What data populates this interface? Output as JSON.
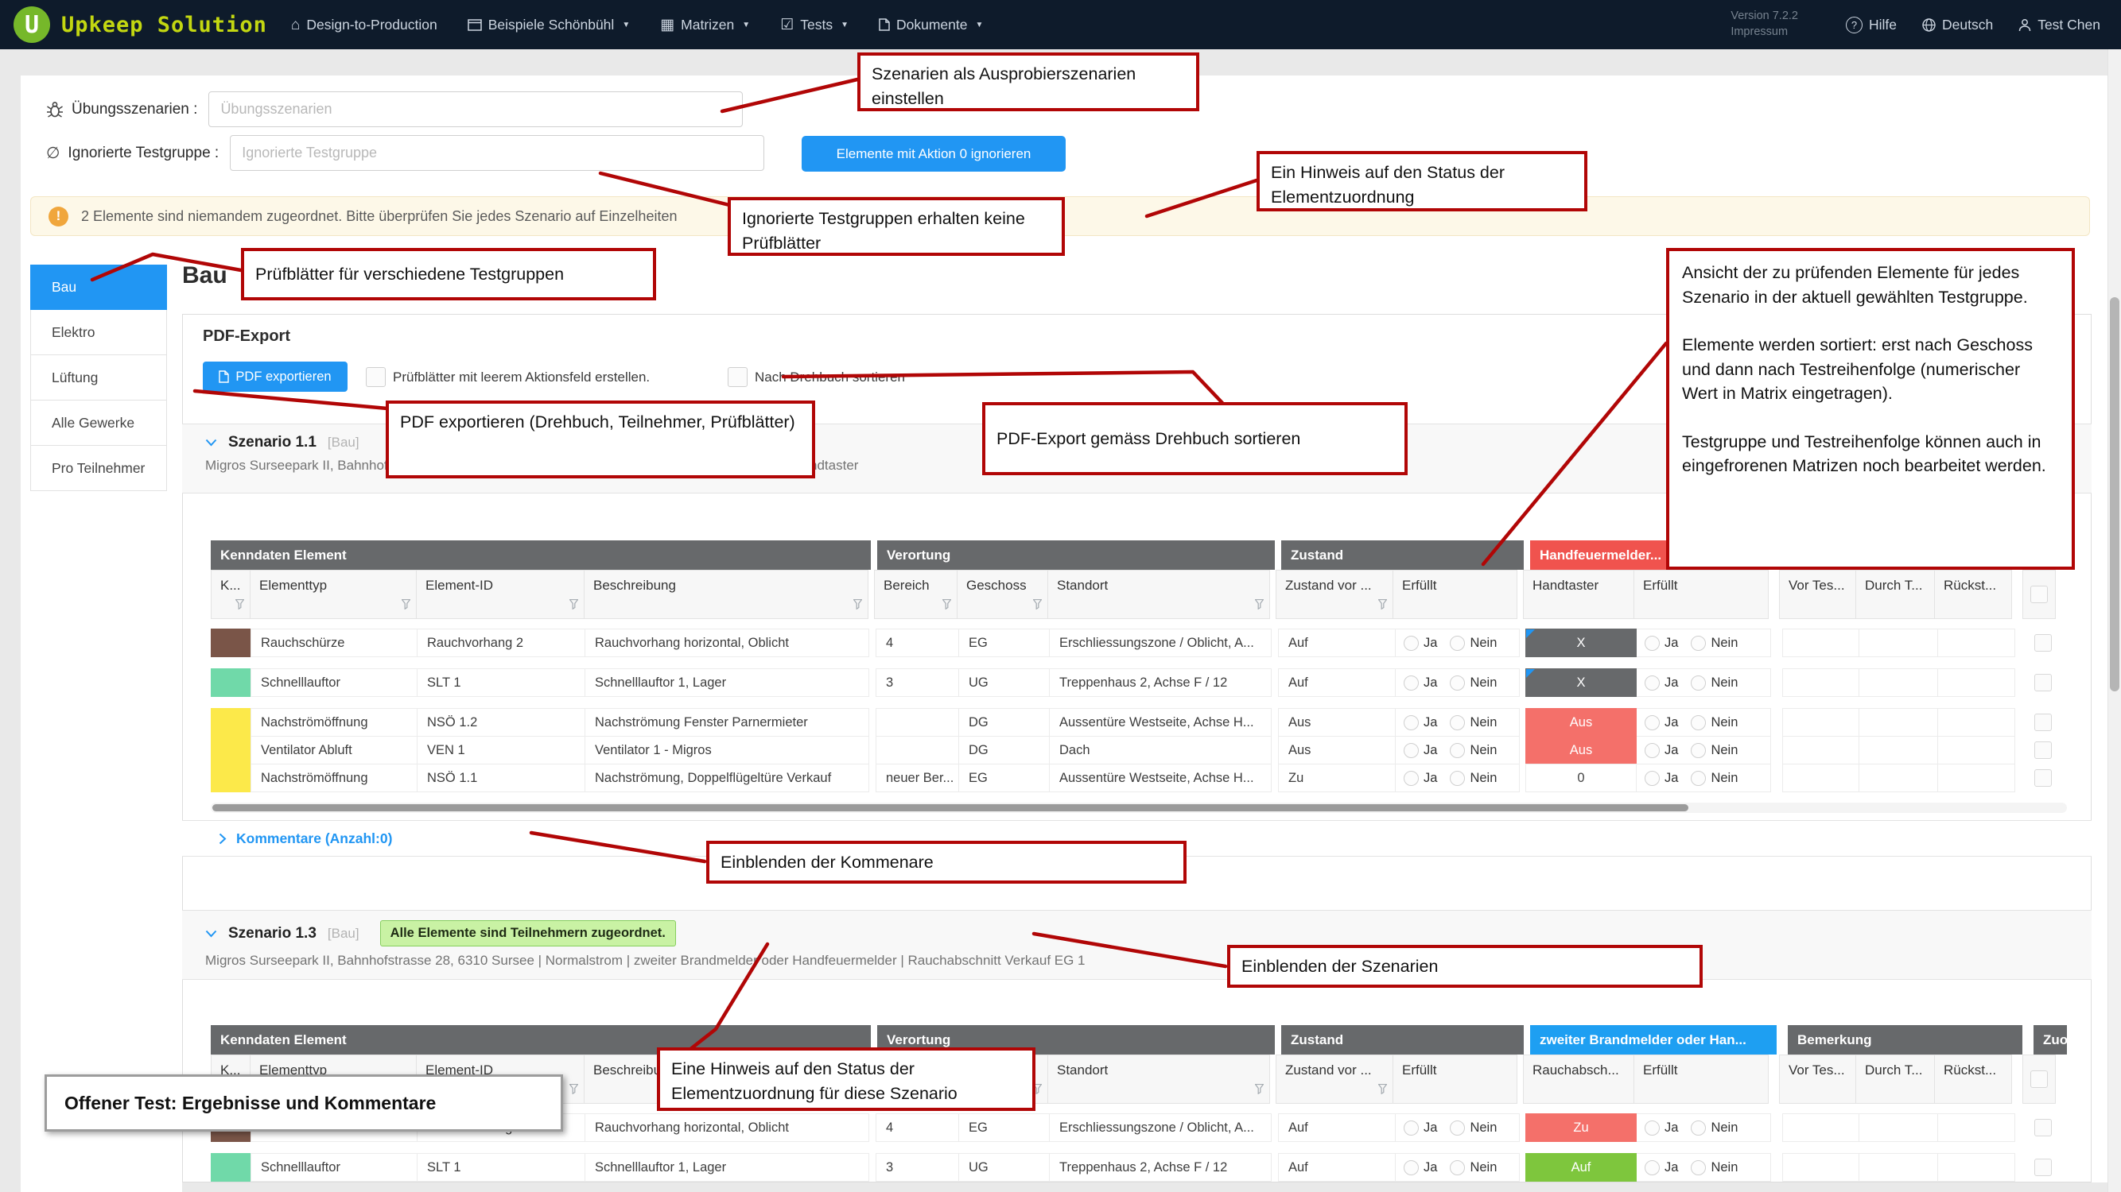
{
  "navbar": {
    "logo_letter": "U",
    "brand": "Upkeep Solution",
    "items": [
      {
        "icon": "home-icon",
        "label": "Design-to-Production",
        "caret": false
      },
      {
        "icon": "window-icon",
        "label": "Beispiele Schönbühl",
        "caret": true
      },
      {
        "icon": "grid-icon",
        "label": "Matrizen",
        "caret": true
      },
      {
        "icon": "calendar-check-icon",
        "label": "Tests",
        "caret": true
      },
      {
        "icon": "document-icon",
        "label": "Dokumente",
        "caret": true
      }
    ],
    "version_line1": "Version 7.2.2",
    "version_line2": "Impressum",
    "right_items": [
      {
        "icon": "question-icon",
        "label": "Hilfe"
      },
      {
        "icon": "globe-icon",
        "label": "Deutsch"
      },
      {
        "icon": "person-icon",
        "label": "Test Chen"
      }
    ]
  },
  "filters": {
    "practice_label": "Übungsszenarien :",
    "practice_placeholder": "Übungsszenarien",
    "ignored_label": "Ignorierte Testgruppe :",
    "ignored_placeholder": "Ignorierte Testgruppe",
    "ignore_button": "Elemente mit Aktion 0 ignorieren"
  },
  "warning_text": "2 Elemente sind niemandem zugeordnet. Bitte überprüfen Sie jedes Szenario auf Einzelheiten",
  "sidebar": {
    "items": [
      "Bau",
      "Elektro",
      "Lüftung",
      "Alle Gewerke",
      "Pro Teilnehmer"
    ],
    "active_index": 0
  },
  "page_title": "Bau",
  "pdf_export": {
    "heading": "PDF-Export",
    "button": "PDF exportieren",
    "checkbox1": "Prüfblätter mit leerem Aktionsfeld erstellen.",
    "checkbox2": "Nach Drehbuch sortieren"
  },
  "labels": {
    "yes": "Ja",
    "no": "Nein"
  },
  "scenario1": {
    "title": "Szenario 1.1",
    "tag": "[Bau]",
    "subtitle": "Migros Surseepark II, Bahnhofstrasse 28, 6310 Sursee | Normalstrom | zweiter Brandmelder oder Handtaster",
    "comments_link": "Kommentare (Anzahl:0)"
  },
  "scenario2": {
    "title": "Szenario 1.3",
    "tag": "[Bau]",
    "badge": "Alle Elemente sind Teilnehmern zugeordnet.",
    "subtitle": "Migros Surseepark II, Bahnhofstrasse 28, 6310 Sursee | Normalstrom | zweiter Brandmelder oder Handfeuermelder | Rauchabschnitt Verkauf EG 1"
  },
  "tables": [
    {
      "dom": "table1",
      "groups": [
        {
          "label": "Kenndaten Element",
          "style": "dark",
          "cols": [
            {
              "label": "K...",
              "filter": true
            },
            {
              "label": "Elementtyp",
              "filter": true
            },
            {
              "label": "Element-ID",
              "filter": true
            },
            {
              "label": "Beschreibung",
              "filter": true
            }
          ]
        },
        {
          "label": "Verortung",
          "style": "dark",
          "cols": [
            {
              "label": "Bereich",
              "filter": true
            },
            {
              "label": "Geschoss",
              "filter": true
            },
            {
              "label": "Standort",
              "filter": true
            }
          ]
        },
        {
          "label": "Zustand",
          "style": "dark",
          "cols": [
            {
              "label": "Zustand vor ...",
              "filter": true
            },
            {
              "label": "Erfüllt",
              "filter": false
            }
          ]
        },
        {
          "label": "Handfeuermelder...",
          "style": "red",
          "cols": [
            {
              "label": "Handtaster",
              "filter": false
            },
            {
              "label": "Erfüllt",
              "filter": false
            }
          ]
        },
        {
          "label": "Bemerkung",
          "style": "dark",
          "cols": [
            {
              "label": "Vor Tes...",
              "filter": false
            },
            {
              "label": "Durch T...",
              "filter": false
            },
            {
              "label": "Rückst...",
              "filter": false
            }
          ]
        },
        {
          "label": "Zuo...",
          "style": "dark",
          "cols": [
            {
              "label": "",
              "checkbox": true
            }
          ]
        }
      ],
      "blocks": [
        {
          "swatch": "#7a5548",
          "rows": [
            {
              "typ": "Rauchschürze",
              "id": "Rauchvorhang 2",
              "beschr": "Rauchvorhang horizontal, Oblicht",
              "bereich": "4",
              "geschoss": "EG",
              "standort": "Erschliessungszone / Oblicht, A...",
              "zvor": "Auf",
              "status": {
                "text": "X",
                "type": "dark",
                "marker": true
              }
            }
          ]
        },
        {
          "swatch": "#70d9a9",
          "rows": [
            {
              "typ": "Schnelllauftor",
              "id": "SLT 1",
              "beschr": "Schnelllauftor 1, Lager",
              "bereich": "3",
              "geschoss": "UG",
              "standort": "Treppenhaus 2, Achse F / 12",
              "zvor": "Auf",
              "status": {
                "text": "X",
                "type": "dark",
                "marker": true
              }
            }
          ]
        },
        {
          "swatch": "#fce94a",
          "rows": [
            {
              "typ": "Nachströmöffnung",
              "id": "NSÖ 1.2",
              "beschr": "Nachströmung Fenster Parnermieter",
              "bereich": "",
              "geschoss": "DG",
              "standort": "Aussentüre Westseite, Achse H...",
              "zvor": "Aus",
              "status": {
                "text": "Aus",
                "type": "red",
                "marker": false
              }
            },
            {
              "typ": "Ventilator Abluft",
              "id": "VEN 1",
              "beschr": "Ventilator 1 - Migros",
              "bereich": "",
              "geschoss": "DG",
              "standort": "Dach",
              "zvor": "Aus",
              "status": {
                "text": "Aus",
                "type": "red",
                "marker": false
              }
            },
            {
              "typ": "Nachströmöffnung",
              "id": "NSÖ 1.1",
              "beschr": "Nachströmung, Doppelflügeltüre Verkauf",
              "bereich": "neuer Ber...",
              "geschoss": "EG",
              "standort": "Aussentüre Westseite, Achse H...",
              "zvor": "Zu",
              "status": {
                "text": "0",
                "type": "plain",
                "marker": false
              }
            }
          ]
        }
      ]
    },
    {
      "dom": "table2",
      "groups": [
        {
          "label": "Kenndaten Element",
          "style": "dark",
          "cols": [
            {
              "label": "K...",
              "filter": true
            },
            {
              "label": "Elementtyp",
              "filter": true
            },
            {
              "label": "Element-ID",
              "filter": true
            },
            {
              "label": "Beschreibu...",
              "filter": true
            }
          ]
        },
        {
          "label": "Verortung",
          "style": "dark",
          "cols": [
            {
              "label": "Bereich",
              "filter": true
            },
            {
              "label": "Geschoss",
              "filter": true
            },
            {
              "label": "Standort",
              "filter": true
            }
          ]
        },
        {
          "label": "Zustand",
          "style": "dark",
          "cols": [
            {
              "label": "Zustand vor ...",
              "filter": true
            },
            {
              "label": "Erfüllt",
              "filter": false
            }
          ]
        },
        {
          "label": "zweiter Brandmelder oder Han...",
          "style": "blue",
          "cols": [
            {
              "label": "Rauchabsch...",
              "filter": false
            },
            {
              "label": "Erfüllt",
              "filter": false
            }
          ]
        },
        {
          "label": "Bemerkung",
          "style": "dark",
          "cols": [
            {
              "label": "Vor Tes...",
              "filter": false
            },
            {
              "label": "Durch T...",
              "filter": false
            },
            {
              "label": "Rückst...",
              "filter": false
            }
          ]
        },
        {
          "label": "Zuo...",
          "style": "dark",
          "cols": [
            {
              "label": "",
              "checkbox": true
            }
          ]
        }
      ],
      "blocks": [
        {
          "swatch": "#7a5548",
          "rows": [
            {
              "typ": "Rauchschürze",
              "id": "Rauchvorhang 2",
              "beschr": "Rauchvorhang horizontal, Oblicht",
              "bereich": "4",
              "geschoss": "EG",
              "standort": "Erschliessungszone / Oblicht, A...",
              "zvor": "Auf",
              "status": {
                "text": "Zu",
                "type": "red",
                "marker": false
              }
            }
          ]
        },
        {
          "swatch": "#70d9a9",
          "rows": [
            {
              "typ": "Schnelllauftor",
              "id": "SLT 1",
              "beschr": "Schnelllauftor 1, Lager",
              "bereich": "3",
              "geschoss": "UG",
              "standort": "Treppenhaus 2, Achse F / 12",
              "zvor": "Auf",
              "status": {
                "text": "Auf",
                "type": "green",
                "marker": false
              }
            }
          ]
        }
      ]
    }
  ],
  "annotations": [
    {
      "dom": "a1",
      "text": "Szenarien als Ausprobierszenarien einstellen"
    },
    {
      "dom": "a2",
      "text": "Ein Hinweis auf den Status der Elementzuordnung"
    },
    {
      "dom": "a3",
      "text": "Ignorierte Testgruppen erhalten keine Prüfblätter"
    },
    {
      "dom": "a4",
      "text": "Prüfblätter für verschiedene Testgruppen",
      "vcenter": true
    },
    {
      "dom": "a5",
      "paragraphs": [
        "Ansicht der zu prüfenden Elemente für jedes Szenario in der aktuell gewählten Testgruppe.",
        "Elemente werden sortiert: erst nach Geschoss und dann nach Testreihenfolge (numerischer Wert in Matrix eingetragen).",
        "Testgruppe und Testreihenfolge können auch in eingefrorenen Matrizen noch bearbeitet werden."
      ]
    },
    {
      "dom": "a6",
      "text": "PDF exportieren (Drehbuch, Teilnehmer, Prüfblätter)"
    },
    {
      "dom": "a7",
      "text": "PDF-Export gemäss Drehbuch sortieren",
      "vcenter": true
    },
    {
      "dom": "a8",
      "text": "Einblenden der Kommenare",
      "vcenter": true
    },
    {
      "dom": "a9",
      "text": "Einblenden der Szenarien",
      "vcenter": true
    },
    {
      "dom": "a10",
      "text": "Eine Hinweis auf den Status der Elementzuordnung für diese Szenario"
    }
  ],
  "gray_note": "Offener Test: Ergebnisse und Kommentare",
  "colors": {
    "accent": "#2196f3",
    "nav_bg": "#0e1b2b",
    "logo_green": "#76b82a",
    "brand_text": "#c3d711",
    "warning_bg": "#fdf8e8",
    "group_dark": "#67696b",
    "group_red": "#f0534e",
    "group_blue": "#1e9ff2",
    "chip_red": "#f4706a",
    "chip_green": "#7ec63d",
    "annotation_red": "#b10606",
    "badge_green": "#c9f2a4"
  }
}
